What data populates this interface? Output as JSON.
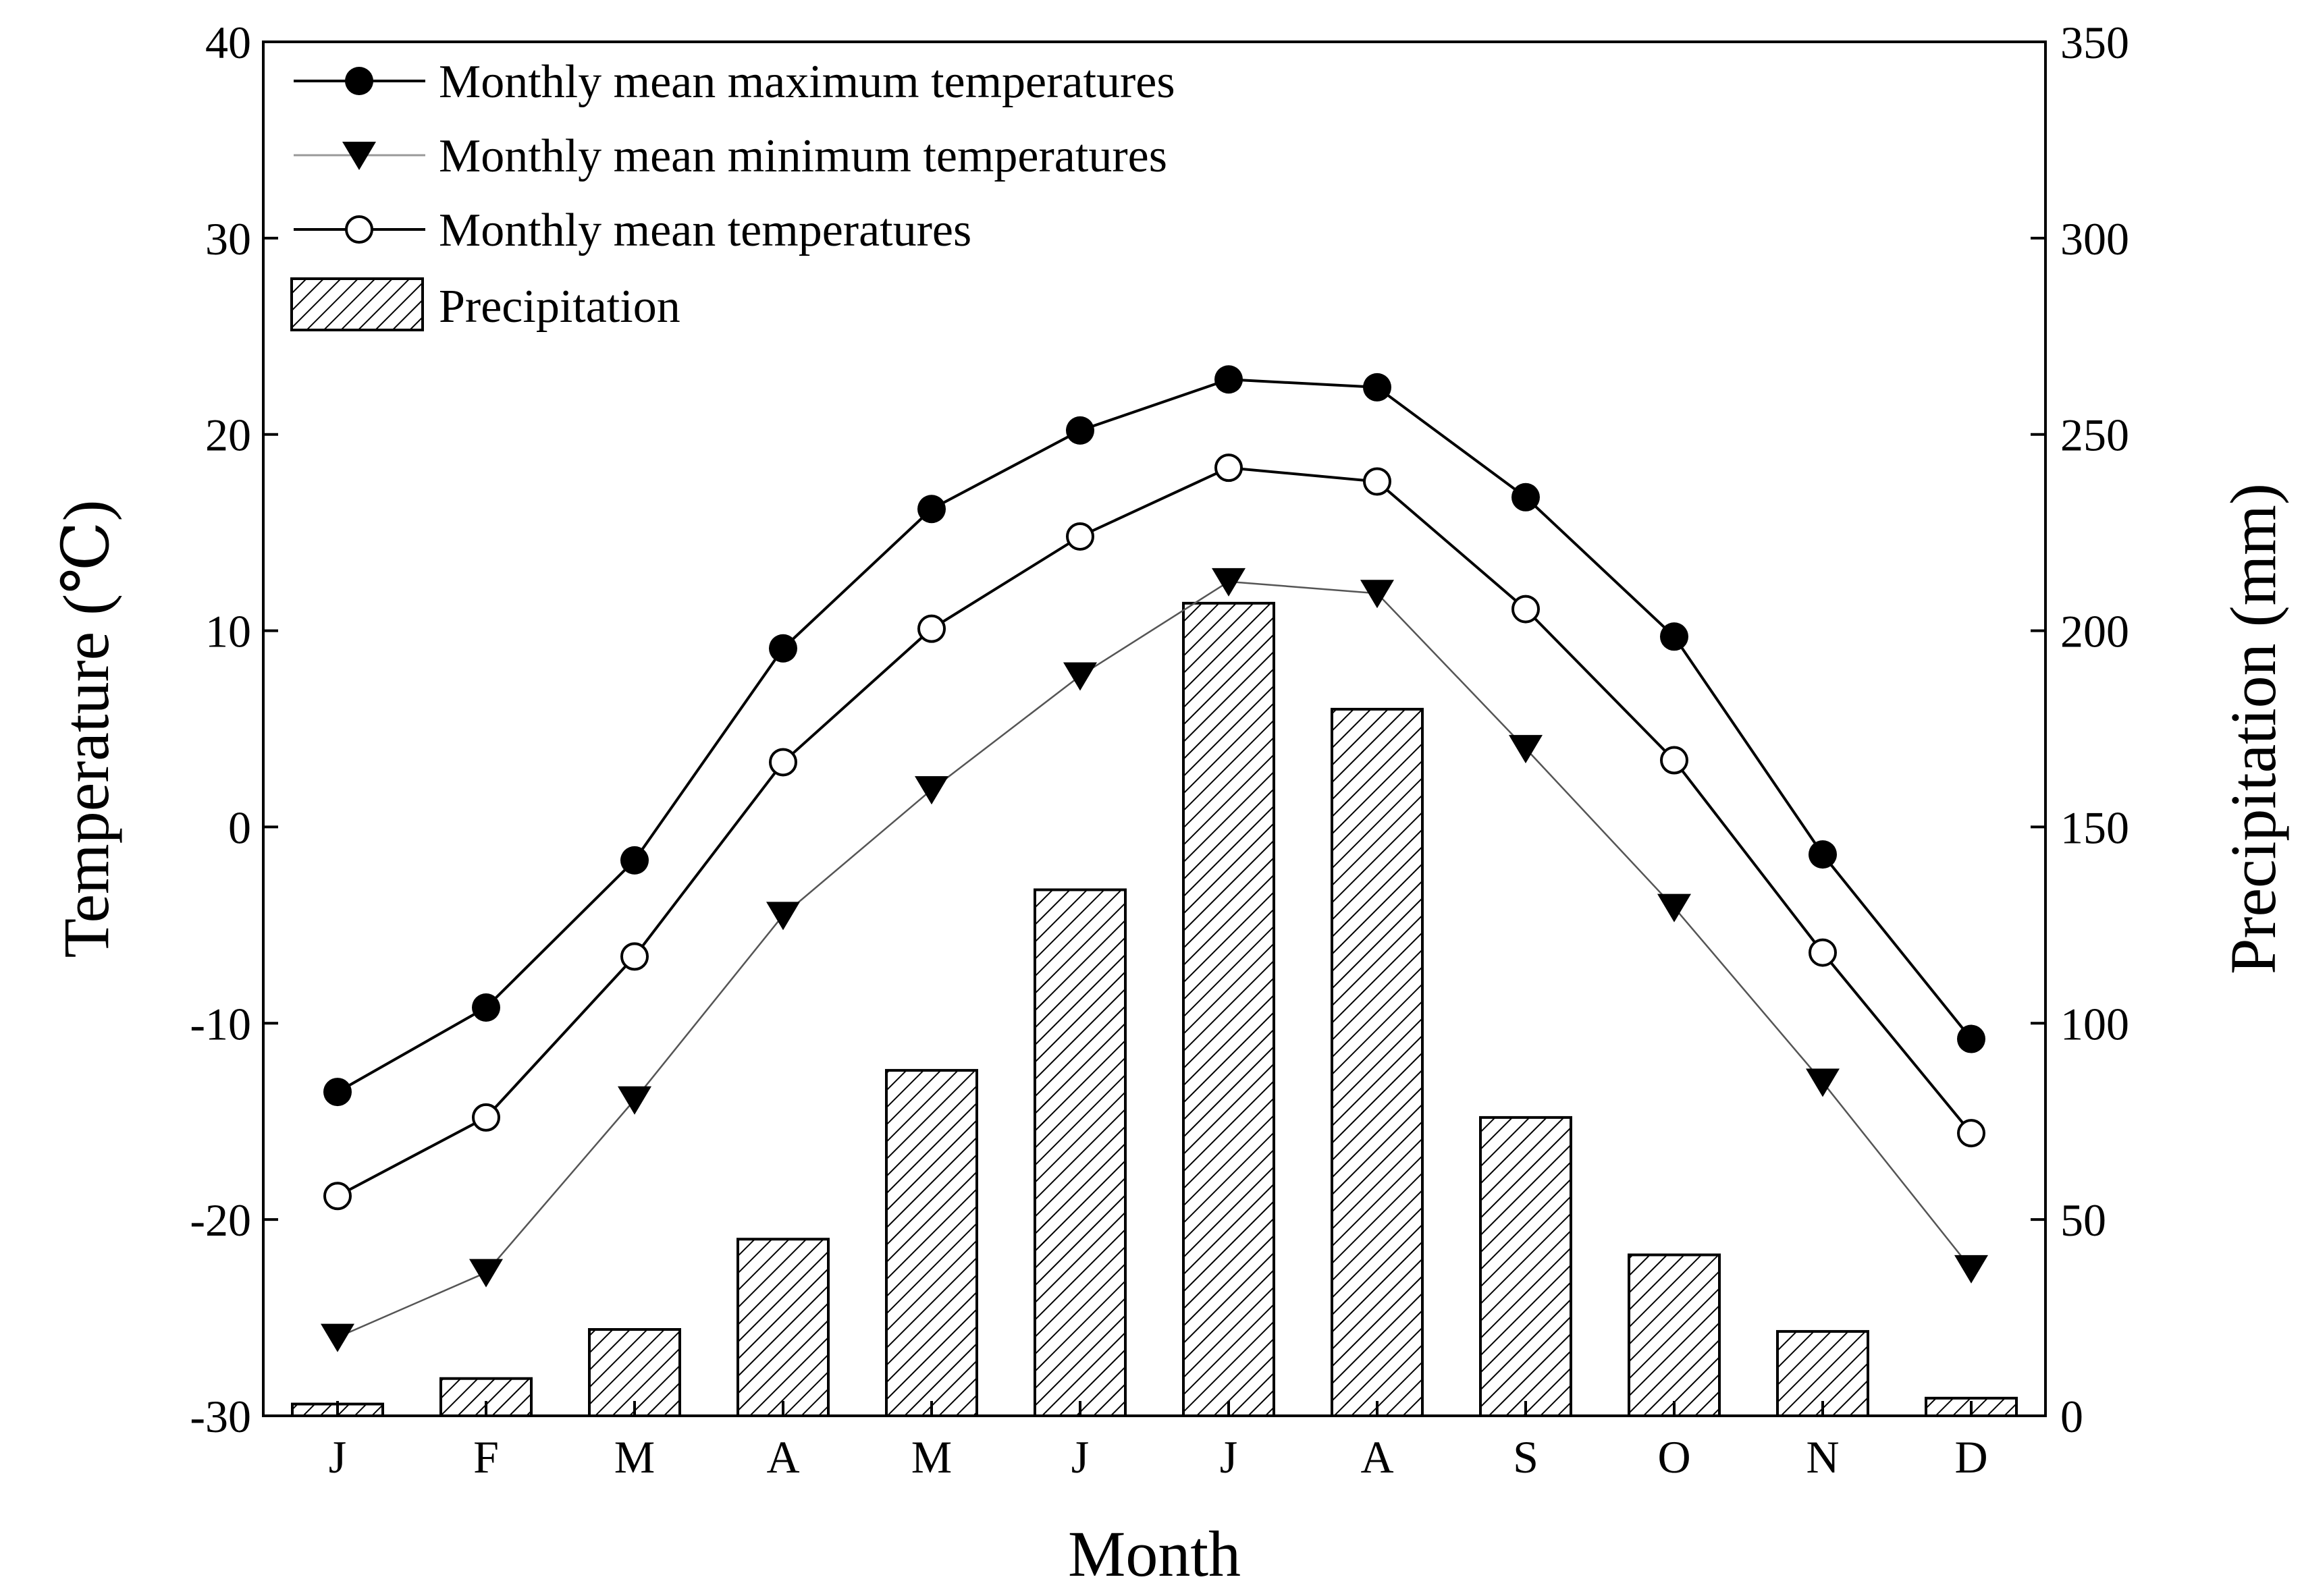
{
  "chart_data": {
    "type": "bar+line",
    "categories": [
      "J",
      "F",
      "M",
      "A",
      "M",
      "J",
      "J",
      "A",
      "S",
      "O",
      "N",
      "D"
    ],
    "xlabel": "Month",
    "ylabel_left": "Temperature (℃)",
    "ylabel_right": "Precipitation (mm)",
    "ylim_left": [
      -30,
      40
    ],
    "ylim_right": [
      0,
      350
    ],
    "yticks_left": [
      "40",
      "30",
      "20",
      "10",
      "0",
      "-10",
      "-20",
      "-30"
    ],
    "yticks_right": [
      "350",
      "300",
      "250",
      "200",
      "150",
      "100",
      "50",
      "0"
    ],
    "series": [
      {
        "name": "Monthly mean maximum temperatures",
        "axis": "left",
        "marker": "filled-circle",
        "values": [
          -13.5,
          -9.2,
          -1.7,
          9.1,
          16.2,
          20.2,
          22.8,
          22.4,
          16.8,
          9.7,
          -1.4,
          -10.8
        ]
      },
      {
        "name": "Monthly mean minimum temperatures",
        "axis": "left",
        "marker": "filled-triangle-down",
        "values": [
          -26.0,
          -22.7,
          -13.9,
          -4.5,
          1.9,
          7.7,
          12.5,
          11.9,
          4.0,
          -4.1,
          -13.0,
          -22.5
        ]
      },
      {
        "name": "Monthly mean temperatures",
        "axis": "left",
        "marker": "open-circle",
        "values": [
          -18.8,
          -14.8,
          -6.6,
          3.3,
          10.1,
          14.8,
          18.3,
          17.6,
          11.1,
          3.4,
          -6.4,
          -15.6
        ]
      },
      {
        "name": "Precipitation",
        "axis": "right",
        "type": "bar",
        "pattern": "hatched",
        "values": [
          3,
          9.5,
          22,
          45,
          88,
          134,
          207,
          180,
          76,
          41,
          21.5,
          4.5
        ]
      }
    ],
    "legend": {
      "position": "top-left",
      "labels": [
        "Monthly mean maximum temperatures",
        "Monthly mean minimum temperatures",
        "Monthly mean temperatures",
        "Precipitation"
      ]
    }
  }
}
